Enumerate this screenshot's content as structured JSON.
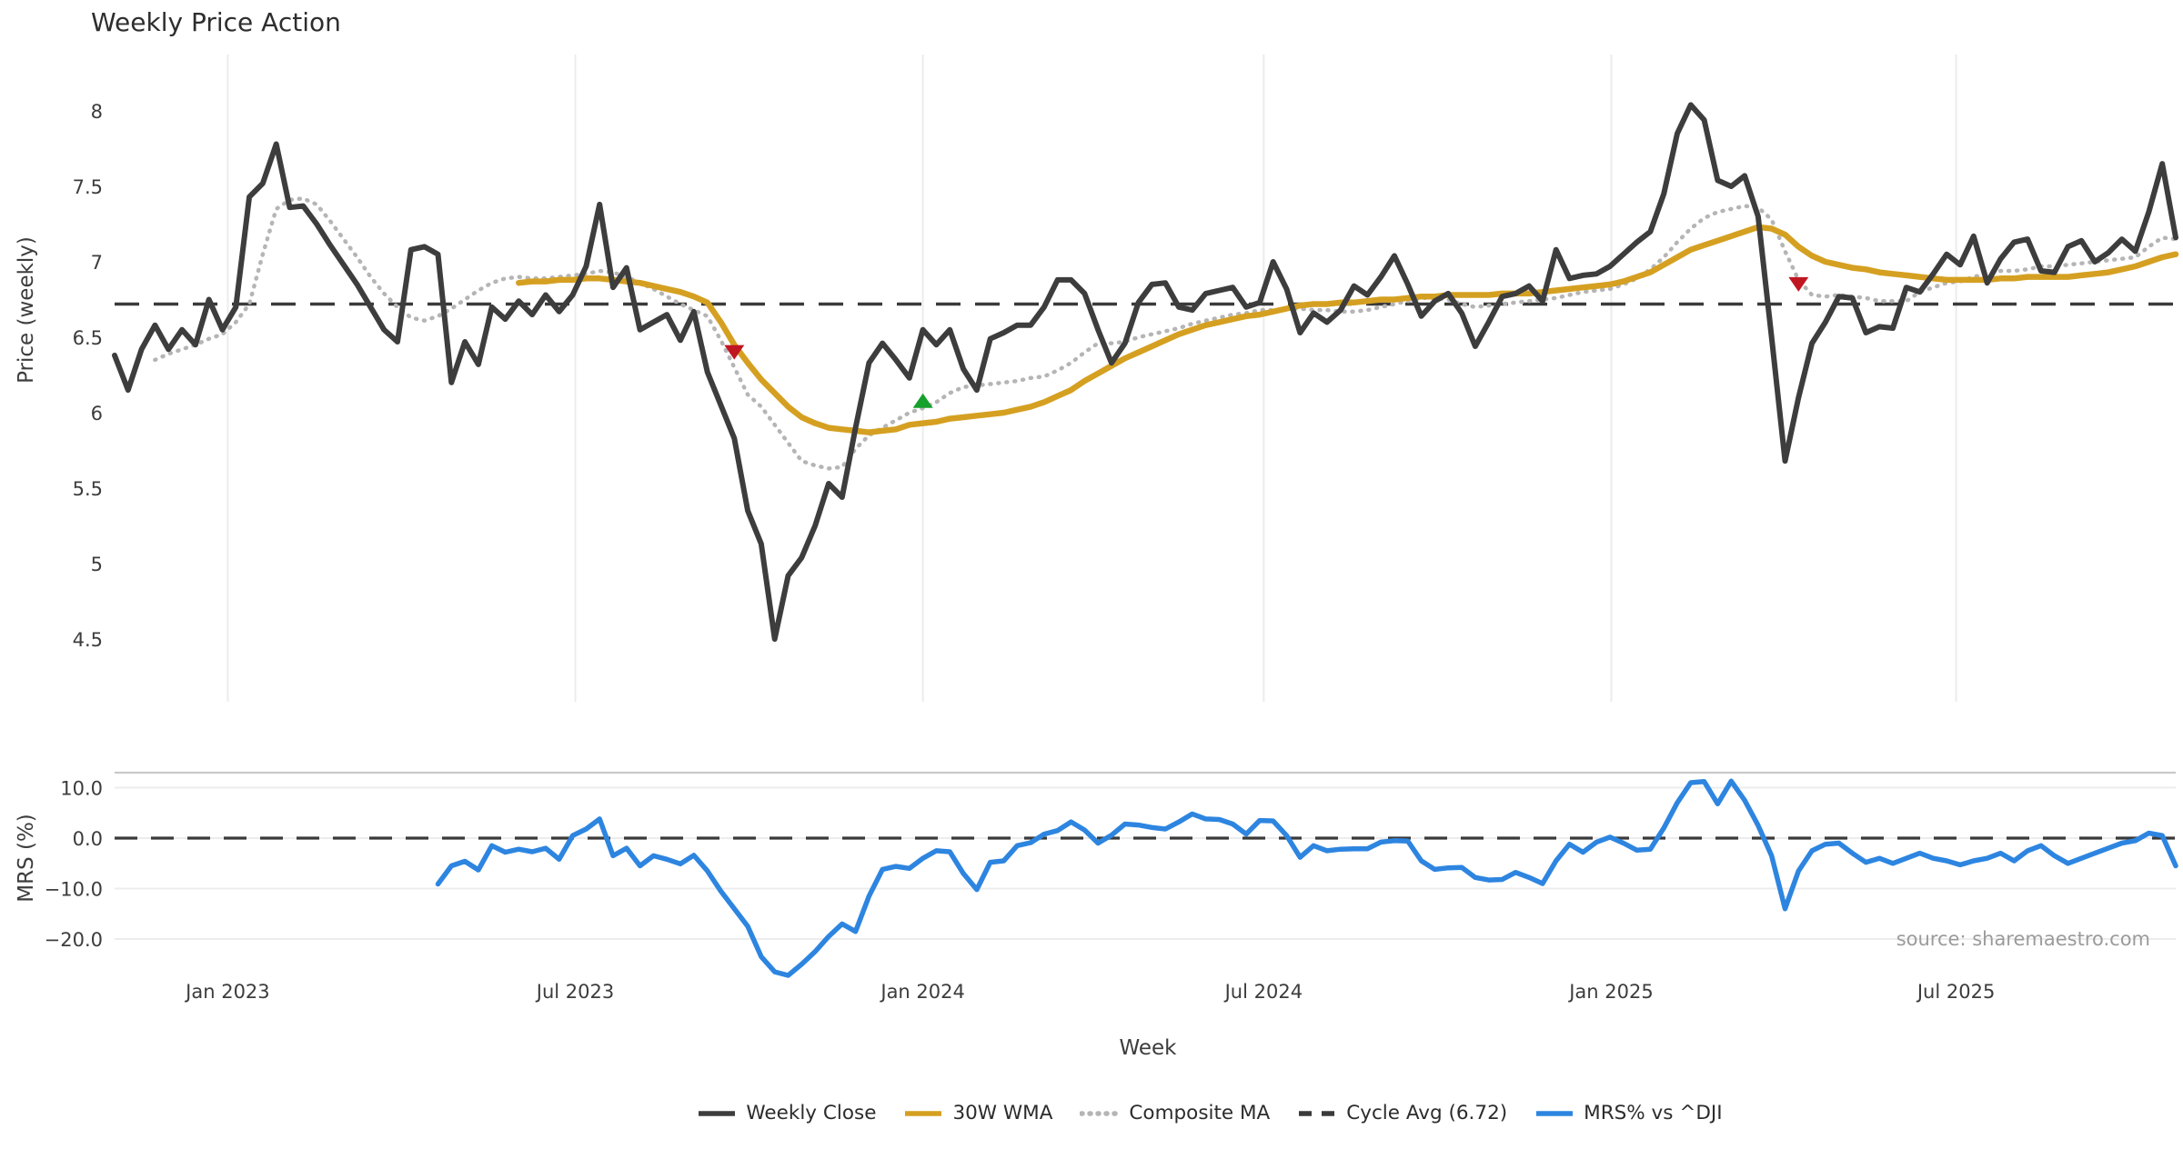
{
  "title": "Weekly Price Action",
  "source": "source: sharemaestro.com",
  "chart_data": [
    {
      "type": "line",
      "panel": "price",
      "title": "Weekly Price Action",
      "xlabel": "Week",
      "ylabel": "Price (weekly)",
      "ylim": [
        4.1,
        8.37
      ],
      "xlim_weeks": [
        0,
        153
      ],
      "grid": "vertical-only",
      "yticks": [
        {
          "label": "8",
          "value": 8
        },
        {
          "label": "7.5",
          "value": 7.5
        },
        {
          "label": "7",
          "value": 7
        },
        {
          "label": "6.5",
          "value": 6.5
        },
        {
          "label": "6",
          "value": 6
        },
        {
          "label": "5.5",
          "value": 5.5
        },
        {
          "label": "5",
          "value": 5
        },
        {
          "label": "4.5",
          "value": 4.5
        }
      ],
      "xticks": [
        {
          "label": "Jan 2023",
          "week": 8.4
        },
        {
          "label": "Jul 2023",
          "week": 34.2
        },
        {
          "label": "Jan 2024",
          "week": 60.0
        },
        {
          "label": "Jul 2024",
          "week": 85.3
        },
        {
          "label": "Jan 2025",
          "week": 111.1
        },
        {
          "label": "Jul 2025",
          "week": 136.7
        }
      ],
      "cycle_avg": {
        "label": "Cycle Avg (6.72)",
        "value": 6.72,
        "color": "#3a3a3a",
        "style": "dashed"
      },
      "series": [
        {
          "name": "Weekly Close",
          "color": "#3d3d3d",
          "style": "solid",
          "width": 6,
          "start_week": 0,
          "values": [
            6.38,
            6.15,
            6.42,
            6.58,
            6.42,
            6.55,
            6.45,
            6.75,
            6.55,
            6.7,
            7.43,
            7.52,
            7.78,
            7.36,
            7.37,
            7.25,
            7.11,
            6.98,
            6.85,
            6.7,
            6.55,
            6.47,
            7.08,
            7.1,
            7.05,
            6.2,
            6.47,
            6.32,
            6.7,
            6.62,
            6.74,
            6.65,
            6.78,
            6.67,
            6.78,
            6.97,
            7.38,
            6.83,
            6.96,
            6.55,
            6.6,
            6.65,
            6.48,
            6.67,
            6.27,
            6.05,
            5.83,
            5.35,
            5.13,
            4.5,
            4.92,
            5.04,
            5.25,
            5.53,
            5.44,
            5.9,
            6.33,
            6.46,
            6.35,
            6.23,
            6.55,
            6.45,
            6.55,
            6.29,
            6.15,
            6.49,
            6.53,
            6.58,
            6.58,
            6.7,
            6.88,
            6.88,
            6.79,
            6.55,
            6.33,
            6.46,
            6.73,
            6.85,
            6.86,
            6.7,
            6.68,
            6.79,
            6.81,
            6.83,
            6.7,
            6.73,
            7.0,
            6.82,
            6.53,
            6.66,
            6.6,
            6.68,
            6.84,
            6.78,
            6.9,
            7.04,
            6.85,
            6.64,
            6.74,
            6.79,
            6.66,
            6.44,
            6.6,
            6.77,
            6.79,
            6.84,
            6.74,
            7.08,
            6.89,
            6.91,
            6.92,
            6.97,
            7.05,
            7.13,
            7.2,
            7.45,
            7.85,
            8.04,
            7.94,
            7.54,
            7.5,
            7.57,
            7.3,
            6.5,
            5.68,
            6.1,
            6.46,
            6.6,
            6.77,
            6.76,
            6.53,
            6.57,
            6.56,
            6.83,
            6.8,
            6.92,
            7.05,
            6.98,
            7.17,
            6.86,
            7.02,
            7.13,
            7.15,
            6.94,
            6.93,
            7.1,
            7.14,
            7.0,
            7.06,
            7.15,
            7.07,
            7.33,
            7.65,
            7.16
          ]
        },
        {
          "name": "30W WMA",
          "color": "#D5A021",
          "style": "solid",
          "width": 6.5,
          "start_week": 30,
          "values": [
            6.86,
            6.87,
            6.87,
            6.88,
            6.88,
            6.89,
            6.89,
            6.88,
            6.87,
            6.86,
            6.84,
            6.82,
            6.8,
            6.77,
            6.73,
            6.6,
            6.45,
            6.33,
            6.22,
            6.13,
            6.04,
            5.97,
            5.93,
            5.9,
            5.89,
            5.88,
            5.87,
            5.88,
            5.89,
            5.92,
            5.93,
            5.94,
            5.96,
            5.97,
            5.98,
            5.99,
            6.0,
            6.02,
            6.04,
            6.07,
            6.11,
            6.15,
            6.21,
            6.26,
            6.31,
            6.36,
            6.4,
            6.44,
            6.48,
            6.52,
            6.55,
            6.58,
            6.6,
            6.62,
            6.64,
            6.65,
            6.67,
            6.69,
            6.71,
            6.72,
            6.72,
            6.73,
            6.73,
            6.74,
            6.75,
            6.75,
            6.76,
            6.77,
            6.77,
            6.78,
            6.78,
            6.78,
            6.78,
            6.79,
            6.79,
            6.79,
            6.8,
            6.81,
            6.82,
            6.83,
            6.84,
            6.85,
            6.87,
            6.9,
            6.93,
            6.98,
            7.03,
            7.08,
            7.11,
            7.14,
            7.17,
            7.2,
            7.23,
            7.22,
            7.18,
            7.1,
            7.04,
            7.0,
            6.98,
            6.96,
            6.95,
            6.93,
            6.92,
            6.91,
            6.9,
            6.89,
            6.88,
            6.88,
            6.88,
            6.88,
            6.89,
            6.89,
            6.9,
            6.9,
            6.9,
            6.9,
            6.91,
            6.92,
            6.93,
            6.95,
            6.97,
            7.0,
            7.03,
            7.05
          ]
        },
        {
          "name": "Composite MA",
          "color": "#b5b5b5",
          "style": "dotted",
          "width": 4.5,
          "start_week": 3,
          "values": [
            6.35,
            6.39,
            6.42,
            6.45,
            6.49,
            6.52,
            6.6,
            6.72,
            7.05,
            7.35,
            7.41,
            7.42,
            7.38,
            7.27,
            7.15,
            7.03,
            6.9,
            6.79,
            6.7,
            6.63,
            6.61,
            6.64,
            6.69,
            6.75,
            6.81,
            6.86,
            6.89,
            6.9,
            6.89,
            6.89,
            6.9,
            6.91,
            6.92,
            6.94,
            6.93,
            6.9,
            6.86,
            6.82,
            6.77,
            6.72,
            6.68,
            6.64,
            6.48,
            6.3,
            6.12,
            6.04,
            5.92,
            5.8,
            5.68,
            5.65,
            5.63,
            5.64,
            5.76,
            5.85,
            5.9,
            5.95,
            6.0,
            6.03,
            6.07,
            6.13,
            6.17,
            6.18,
            6.19,
            6.2,
            6.21,
            6.23,
            6.24,
            6.28,
            6.33,
            6.4,
            6.46,
            6.46,
            6.47,
            6.5,
            6.52,
            6.54,
            6.56,
            6.59,
            6.61,
            6.63,
            6.65,
            6.66,
            6.68,
            6.68,
            6.69,
            6.69,
            6.68,
            6.68,
            6.67,
            6.67,
            6.68,
            6.7,
            6.72,
            6.74,
            6.76,
            6.76,
            6.75,
            6.72,
            6.7,
            6.71,
            6.72,
            6.73,
            6.74,
            6.75,
            6.76,
            6.78,
            6.8,
            6.81,
            6.82,
            6.85,
            6.89,
            6.95,
            7.03,
            7.13,
            7.22,
            7.29,
            7.33,
            7.35,
            7.37,
            7.36,
            7.28,
            7.07,
            6.88,
            6.78,
            6.77,
            6.78,
            6.77,
            6.76,
            6.74,
            6.74,
            6.74,
            6.8,
            6.83,
            6.86,
            6.87,
            6.9,
            6.92,
            6.94,
            6.94,
            6.95,
            6.97,
            6.97,
            6.98,
            6.99,
            7.0,
            7.01,
            7.02,
            7.03,
            7.1,
            7.16,
            7.15
          ]
        }
      ],
      "markers": [
        {
          "shape": "triangle-down",
          "color": "#C01622",
          "week": 46,
          "value": 6.4
        },
        {
          "shape": "triangle-up",
          "color": "#16A02C",
          "week": 60,
          "value": 6.08
        },
        {
          "shape": "triangle-down",
          "color": "#C01622",
          "week": 125,
          "value": 6.85
        }
      ]
    },
    {
      "type": "line",
      "panel": "mrs",
      "ylabel": "MRS (%)",
      "ylim": [
        -27.6,
        13.0
      ],
      "grid": "horizontal-only",
      "zero_line": {
        "value": 0,
        "color": "#3a3a3a",
        "style": "dashed"
      },
      "yticks": [
        {
          "label": "10.0",
          "value": 10
        },
        {
          "label": "0.0",
          "value": 0
        },
        {
          "label": "−10.0",
          "value": -10
        },
        {
          "label": "−20.0",
          "value": -20
        }
      ],
      "series": [
        {
          "name": "MRS% vs ^DJI",
          "color": "#2D85E0",
          "style": "solid",
          "width": 5.5,
          "start_week": 24,
          "values": [
            -9.1,
            -5.5,
            -4.6,
            -6.3,
            -1.5,
            -2.8,
            -2.2,
            -2.7,
            -2.0,
            -4.2,
            0.5,
            1.8,
            3.8,
            -3.5,
            -2.0,
            -5.5,
            -3.5,
            -4.2,
            -5.1,
            -3.4,
            -6.5,
            -10.5,
            -14.0,
            -17.5,
            -23.5,
            -26.5,
            -27.2,
            -25.0,
            -22.5,
            -19.5,
            -17.0,
            -18.5,
            -11.5,
            -6.2,
            -5.6,
            -6.0,
            -4.0,
            -2.5,
            -2.7,
            -7.0,
            -10.2,
            -4.8,
            -4.5,
            -1.5,
            -0.9,
            0.8,
            1.5,
            3.2,
            1.6,
            -1.0,
            0.6,
            2.8,
            2.6,
            2.1,
            1.8,
            3.2,
            4.8,
            3.8,
            3.7,
            2.8,
            0.8,
            3.5,
            3.4,
            0.5,
            -3.8,
            -1.5,
            -2.5,
            -2.2,
            -2.1,
            -2.1,
            -0.8,
            -0.5,
            -0.6,
            -4.5,
            -6.2,
            -5.9,
            -5.8,
            -7.8,
            -8.3,
            -8.2,
            -6.8,
            -7.8,
            -9.0,
            -4.5,
            -1.2,
            -2.8,
            -0.8,
            0.2,
            -1.0,
            -2.4,
            -2.2,
            2.0,
            7.0,
            11.0,
            11.2,
            6.8,
            11.3,
            7.5,
            2.5,
            -3.5,
            -14.0,
            -6.5,
            -2.5,
            -1.2,
            -1.0,
            -3.0,
            -4.8,
            -4.0,
            -5.0,
            -4.0,
            -3.0,
            -4.0,
            -4.5,
            -5.3,
            -4.5,
            -4.0,
            -3.0,
            -4.5,
            -2.5,
            -1.5,
            -3.5,
            -5.0,
            -4.0,
            -3.0,
            -2.0,
            -1.0,
            -0.5,
            1.0,
            0.5,
            -5.5
          ]
        }
      ]
    }
  ],
  "legend": {
    "items": [
      {
        "label": "Weekly Close",
        "color": "#3d3d3d",
        "style": "solid"
      },
      {
        "label": "30W WMA",
        "color": "#D5A021",
        "style": "solid"
      },
      {
        "label": "Composite MA",
        "color": "#b5b5b5",
        "style": "dotted"
      },
      {
        "label": "Cycle Avg (6.72)",
        "color": "#3a3a3a",
        "style": "dashed"
      },
      {
        "label": "MRS% vs ^DJI",
        "color": "#2D85E0",
        "style": "solid"
      }
    ]
  }
}
